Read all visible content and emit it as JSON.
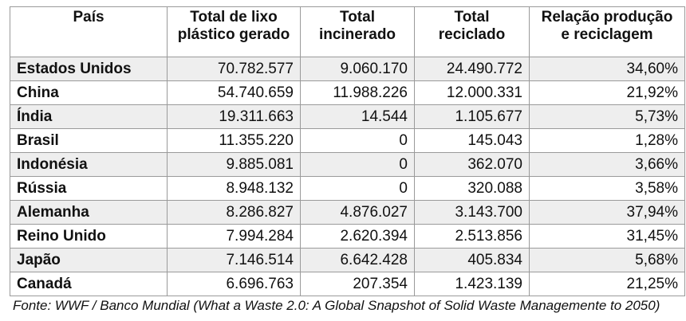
{
  "table": {
    "headers": [
      "País",
      "Total de lixo plástico gerado",
      "Total incinerado",
      "Total reciclado",
      "Relação produção e reciclagem"
    ],
    "rows": [
      [
        "Estados Unidos",
        "70.782.577",
        "9.060.170",
        "24.490.772",
        "34,60%"
      ],
      [
        "China",
        "54.740.659",
        "11.988.226",
        "12.000.331",
        "21,92%"
      ],
      [
        "Índia",
        "19.311.663",
        "14.544",
        "1.105.677",
        "5,73%"
      ],
      [
        "Brasil",
        "11.355.220",
        "0",
        "145.043",
        "1,28%"
      ],
      [
        "Indonésia",
        "9.885.081",
        "0",
        "362.070",
        "3,66%"
      ],
      [
        "Rússia",
        "8.948.132",
        "0",
        "320.088",
        "3,58%"
      ],
      [
        "Alemanha",
        "8.286.827",
        "4.876.027",
        "3.143.700",
        "37,94%"
      ],
      [
        "Reino Unido",
        "7.994.284",
        "2.620.394",
        "2.513.856",
        "31,45%"
      ],
      [
        "Japão",
        "7.146.514",
        "6.642.428",
        "405.834",
        "5,68%"
      ],
      [
        "Canadá",
        "6.696.763",
        "207.354",
        "1.423.139",
        "21,25%"
      ]
    ]
  },
  "source": "Fonte: WWF / Banco Mundial (What a Waste 2.0: A Global Snapshot of Solid Waste Managemente to 2050)",
  "colors": {
    "row_alt": "#eeeeee",
    "border": "#9a9a9a"
  }
}
